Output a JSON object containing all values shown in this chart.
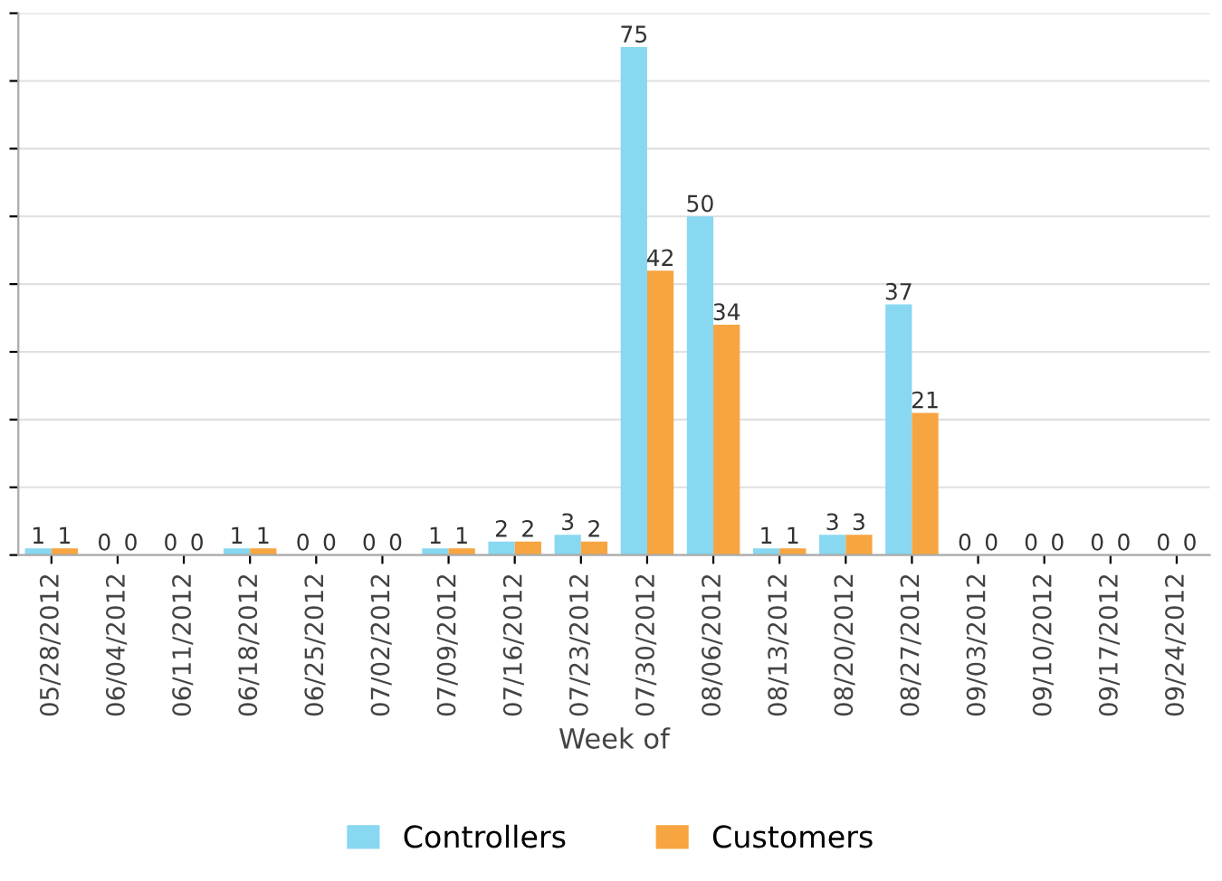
{
  "chart_data": {
    "type": "bar",
    "xlabel": "Week of",
    "categories": [
      "05/28/2012",
      "06/04/2012",
      "06/11/2012",
      "06/18/2012",
      "06/25/2012",
      "07/02/2012",
      "07/09/2012",
      "07/16/2012",
      "07/23/2012",
      "07/30/2012",
      "08/06/2012",
      "08/13/2012",
      "08/20/2012",
      "08/27/2012",
      "09/03/2012",
      "09/10/2012",
      "09/17/2012",
      "09/24/2012"
    ],
    "series": [
      {
        "name": "Controllers",
        "color": "#87d8f0",
        "values": [
          1,
          0,
          0,
          1,
          0,
          0,
          1,
          2,
          3,
          75,
          50,
          1,
          3,
          37,
          0,
          0,
          0,
          0
        ]
      },
      {
        "name": "Customers",
        "color": "#f7a541",
        "values": [
          1,
          0,
          0,
          1,
          0,
          0,
          1,
          2,
          2,
          42,
          34,
          1,
          3,
          21,
          0,
          0,
          0,
          0
        ]
      }
    ],
    "ylim": [
      0,
      80
    ],
    "yticks": [
      {
        "value": 0,
        "label": null
      },
      {
        "value": 10,
        "label": null
      },
      {
        "value": 20,
        "label": null
      },
      {
        "value": 30,
        "label": null
      },
      {
        "value": 40,
        "label": null
      },
      {
        "value": 50,
        "label": null
      },
      {
        "value": 60,
        "label": null
      },
      {
        "value": 70,
        "label": null
      },
      {
        "value": 80,
        "label": null
      }
    ],
    "tick_labels": "x",
    "grid": "y",
    "legend": "bottom",
    "data_labels": true
  }
}
